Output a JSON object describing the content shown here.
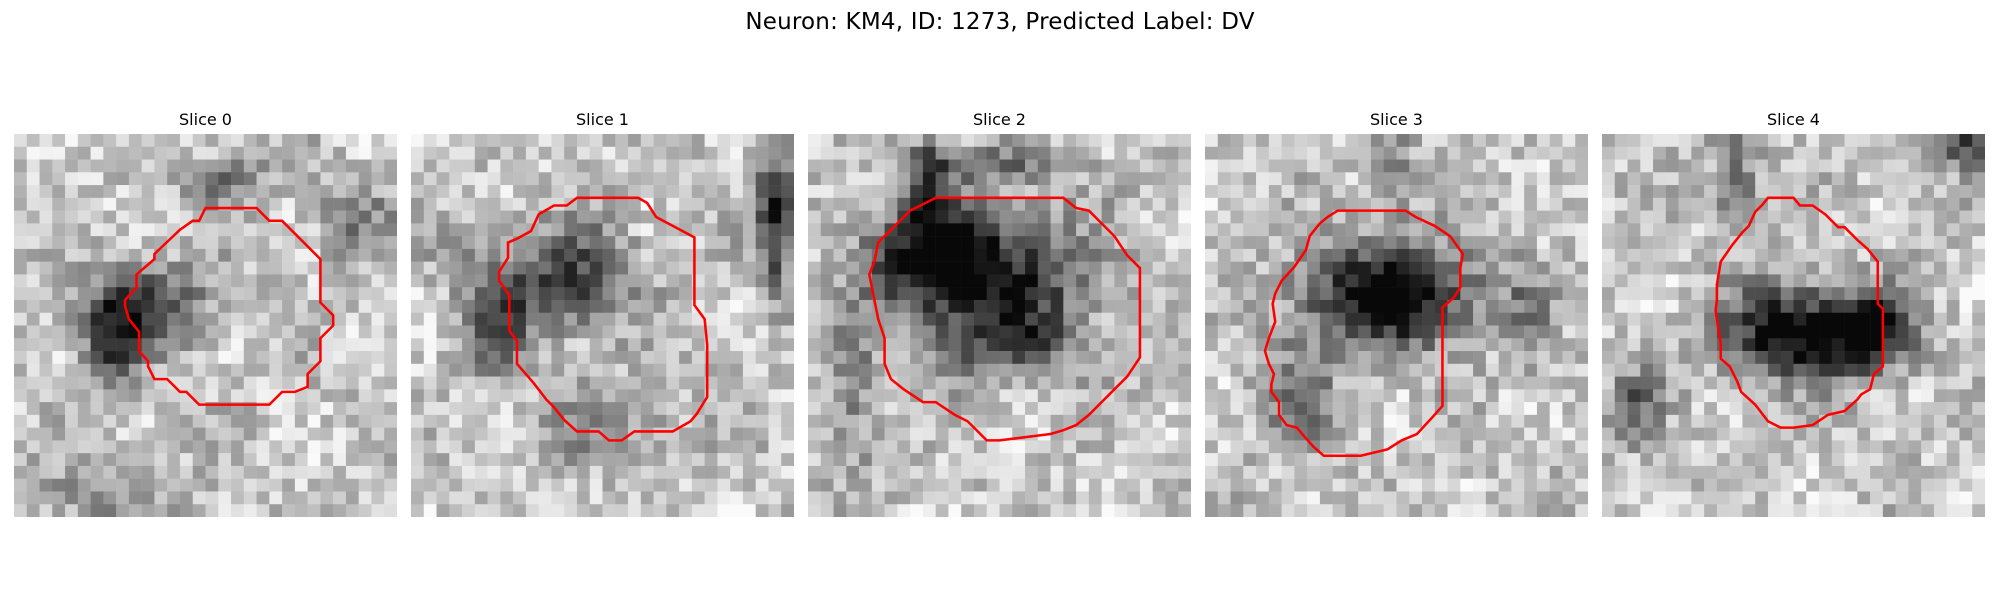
{
  "figure": {
    "title": "Neuron: KM4, ID: 1273, Predicted Label: DV"
  },
  "panels": [
    {
      "title": "Slice 0"
    },
    {
      "title": "Slice 1"
    },
    {
      "title": "Slice 2"
    },
    {
      "title": "Slice 3"
    },
    {
      "title": "Slice 4"
    }
  ],
  "colors": {
    "contour": "#ff0000",
    "background": "#ffffff"
  }
}
